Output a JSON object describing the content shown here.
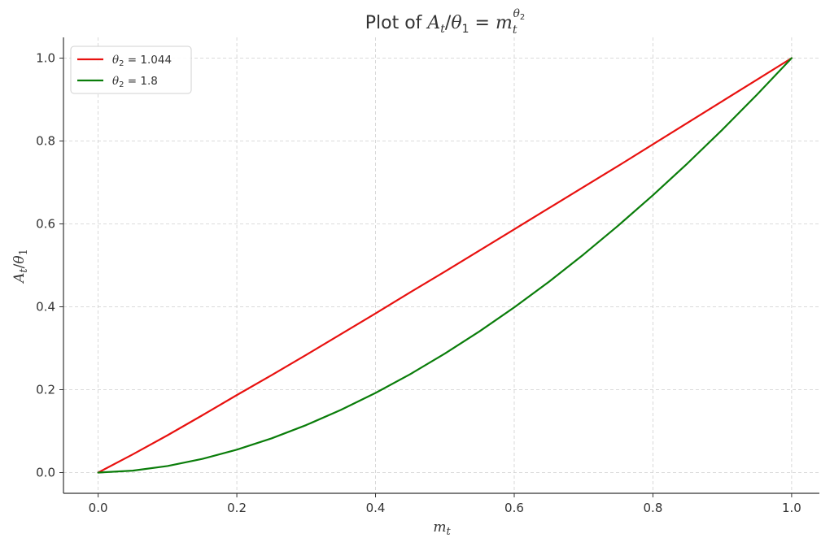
{
  "chart_data": {
    "type": "line",
    "title": {
      "prefix": "Plot of ",
      "A": "A",
      "A_sub": "t",
      "slash": "/",
      "theta": "θ",
      "theta_sub": "1",
      "equals": " = ",
      "m": "m",
      "m_sub": "t",
      "exp_theta": "θ",
      "exp_sub": "2"
    },
    "xlabel": {
      "main": "m",
      "sub": "t"
    },
    "ylabel": {
      "A": "A",
      "A_sub": "t",
      "slash": "/",
      "theta": "θ",
      "theta_sub": "1"
    },
    "xlim": [
      -0.05,
      1.04
    ],
    "ylim": [
      -0.05,
      1.05
    ],
    "xticks": [
      0.0,
      0.2,
      0.4,
      0.6,
      0.8,
      1.0
    ],
    "xtick_labels": [
      "0.0",
      "0.2",
      "0.4",
      "0.6",
      "0.8",
      "1.0"
    ],
    "yticks": [
      0.0,
      0.2,
      0.4,
      0.6,
      0.8,
      1.0
    ],
    "ytick_labels": [
      "0.0",
      "0.2",
      "0.4",
      "0.6",
      "0.8",
      "1.0"
    ],
    "grid": true,
    "legend_position": "top-left",
    "x": [
      0.0,
      0.05,
      0.1,
      0.15,
      0.2,
      0.25,
      0.3,
      0.35,
      0.4,
      0.45,
      0.5,
      0.55,
      0.6,
      0.65,
      0.7,
      0.75,
      0.8,
      0.85,
      0.9,
      0.95,
      1.0
    ],
    "series": [
      {
        "name": {
          "theta": "θ",
          "sub": "2",
          "rest": " = 1.044"
        },
        "color": "#e8110f",
        "values": [
          0.0,
          0.044,
          0.09,
          0.138,
          0.187,
          0.235,
          0.284,
          0.334,
          0.384,
          0.435,
          0.485,
          0.536,
          0.587,
          0.638,
          0.689,
          0.74,
          0.792,
          0.844,
          0.896,
          0.948,
          1.0
        ]
      },
      {
        "name": {
          "theta": "θ",
          "sub": "2",
          "rest": " = 1.8"
        },
        "color": "#0a7d0a",
        "values": [
          0.0,
          0.0046,
          0.0158,
          0.0329,
          0.0552,
          0.0825,
          0.1146,
          0.1512,
          0.1922,
          0.2374,
          0.2872,
          0.3408,
          0.3986,
          0.4604,
          0.5263,
          0.596,
          0.6693,
          0.7463,
          0.8271,
          0.9118,
          1.0
        ]
      }
    ]
  },
  "style": {
    "axis_color": "#333333",
    "grid_color": "#cfcfcf"
  }
}
